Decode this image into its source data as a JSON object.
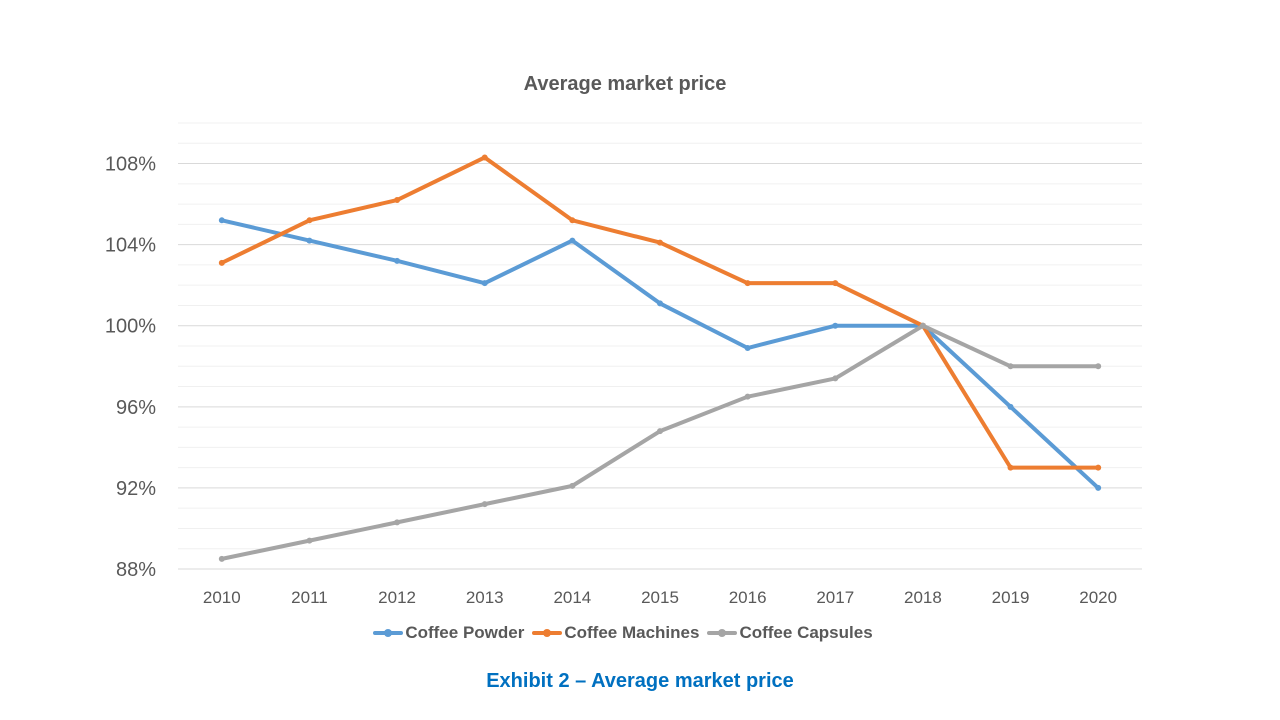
{
  "chart_data": {
    "type": "line",
    "title": "Average market price",
    "caption": "Exhibit 2 – Average market price",
    "categories": [
      "2010",
      "2011",
      "2012",
      "2013",
      "2014",
      "2015",
      "2016",
      "2017",
      "2018",
      "2019",
      "2020"
    ],
    "y_tick_labels": [
      "88%",
      "92%",
      "96%",
      "100%",
      "104%",
      "108%"
    ],
    "y_ticks": [
      88,
      92,
      96,
      100,
      104,
      108
    ],
    "ylim": [
      88,
      110
    ],
    "grid": true,
    "legend_position": "bottom",
    "series": [
      {
        "name": "Coffee Powder",
        "color": "#5b9bd5",
        "values": [
          105.2,
          104.2,
          103.2,
          102.1,
          104.2,
          101.1,
          98.9,
          100.0,
          100.0,
          96.0,
          92.0
        ]
      },
      {
        "name": "Coffee Machines",
        "color": "#ed7d31",
        "values": [
          103.1,
          105.2,
          106.2,
          108.3,
          105.2,
          104.1,
          102.1,
          102.1,
          100.0,
          93.0,
          93.0
        ]
      },
      {
        "name": "Coffee Capsules",
        "color": "#a5a5a5",
        "values": [
          88.5,
          89.4,
          90.3,
          91.2,
          92.1,
          94.8,
          96.5,
          97.4,
          100.0,
          98.0,
          98.0
        ]
      }
    ]
  }
}
